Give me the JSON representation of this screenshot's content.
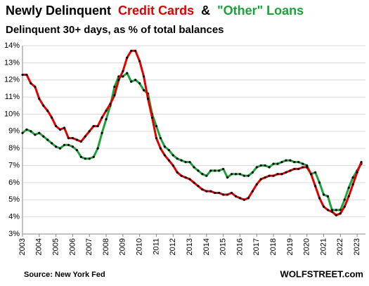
{
  "chart_data": {
    "type": "line",
    "title": "Newly Delinquent",
    "title_conjunction": "&",
    "subtitle": "Delinquent 30+ days, as % of total balances",
    "source": "Source: New York Fed",
    "brand": "WOLFSTREET.com",
    "x": [
      2003,
      2003.25,
      2003.5,
      2003.75,
      2004,
      2004.25,
      2004.5,
      2004.75,
      2005,
      2005.25,
      2005.5,
      2005.75,
      2006,
      2006.25,
      2006.5,
      2006.75,
      2007,
      2007.25,
      2007.5,
      2007.75,
      2008,
      2008.25,
      2008.5,
      2008.75,
      2009,
      2009.25,
      2009.5,
      2009.75,
      2010,
      2010.25,
      2010.5,
      2010.75,
      2011,
      2011.25,
      2011.5,
      2011.75,
      2012,
      2012.25,
      2012.5,
      2012.75,
      2013,
      2013.25,
      2013.5,
      2013.75,
      2014,
      2014.25,
      2014.5,
      2014.75,
      2015,
      2015.25,
      2015.5,
      2015.75,
      2016,
      2016.25,
      2016.5,
      2016.75,
      2017,
      2017.25,
      2017.5,
      2017.75,
      2018,
      2018.25,
      2018.5,
      2018.75,
      2019,
      2019.25,
      2019.5,
      2019.75,
      2020,
      2020.25,
      2020.5,
      2020.75,
      2021,
      2021.25,
      2021.5,
      2021.75,
      2022,
      2022.25,
      2022.5,
      2022.75,
      2023,
      2023.25
    ],
    "series": [
      {
        "name": "Credit Cards",
        "color": "#e00000",
        "values": [
          12.3,
          12.3,
          11.8,
          11.6,
          10.9,
          10.5,
          10.2,
          9.8,
          9.3,
          9.1,
          9.2,
          8.6,
          8.6,
          8.5,
          8.4,
          8.7,
          9.0,
          9.3,
          9.3,
          9.8,
          10.2,
          10.6,
          11.1,
          12.0,
          12.5,
          13.3,
          13.7,
          13.7,
          13.1,
          12.2,
          10.9,
          9.8,
          8.6,
          8.0,
          7.6,
          7.3,
          7.0,
          6.6,
          6.4,
          6.3,
          6.2,
          6.0,
          5.8,
          5.6,
          5.5,
          5.5,
          5.4,
          5.4,
          5.3,
          5.3,
          5.4,
          5.2,
          5.1,
          5.0,
          5.1,
          5.5,
          5.9,
          6.2,
          6.3,
          6.4,
          6.4,
          6.5,
          6.5,
          6.6,
          6.7,
          6.8,
          6.8,
          6.9,
          6.9,
          6.5,
          5.8,
          5.1,
          4.6,
          4.4,
          4.3,
          4.1,
          4.2,
          4.6,
          5.2,
          5.9,
          6.6,
          7.2
        ]
      },
      {
        "name": "\"Other\" Loans",
        "color": "#1aa33a",
        "values": [
          8.9,
          9.1,
          9.0,
          8.8,
          8.9,
          8.7,
          8.5,
          8.3,
          8.1,
          8.0,
          8.2,
          8.2,
          8.1,
          7.9,
          7.5,
          7.4,
          7.4,
          7.5,
          8.0,
          8.9,
          9.7,
          10.5,
          11.6,
          12.2,
          12.2,
          12.4,
          11.9,
          12.0,
          11.8,
          11.4,
          11.2,
          10.0,
          9.3,
          8.6,
          8.1,
          7.9,
          7.6,
          7.4,
          7.3,
          7.2,
          7.2,
          6.9,
          6.7,
          6.5,
          6.4,
          6.7,
          6.7,
          6.7,
          6.8,
          6.3,
          6.5,
          6.5,
          6.5,
          6.4,
          6.4,
          6.6,
          6.9,
          7.0,
          7.0,
          6.9,
          7.1,
          7.1,
          7.2,
          7.3,
          7.3,
          7.2,
          7.2,
          7.1,
          7.0,
          6.5,
          6.6,
          6.0,
          5.3,
          5.2,
          4.4,
          4.4,
          4.4,
          5.0,
          5.7,
          6.3,
          6.7,
          7.1
        ]
      }
    ],
    "xlim": [
      2003,
      2023.5
    ],
    "xticks": [
      2003,
      2004,
      2005,
      2006,
      2007,
      2008,
      2009,
      2010,
      2011,
      2012,
      2013,
      2014,
      2015,
      2016,
      2017,
      2018,
      2019,
      2020,
      2021,
      2022,
      2023
    ],
    "ylim": [
      3,
      14
    ],
    "yticks": [
      {
        "value": 3,
        "label": "3%"
      },
      {
        "value": 4,
        "label": "4%"
      },
      {
        "value": 5,
        "label": "5%"
      },
      {
        "value": 6,
        "label": "6%"
      },
      {
        "value": 7,
        "label": "7%"
      },
      {
        "value": 8,
        "label": "8%"
      },
      {
        "value": 9,
        "label": "9%"
      },
      {
        "value": 10,
        "label": "10%"
      },
      {
        "value": 11,
        "label": "11%"
      },
      {
        "value": 12,
        "label": "12%"
      },
      {
        "value": 13,
        "label": "13%"
      },
      {
        "value": 14,
        "label": "14%"
      }
    ],
    "grid": true,
    "marker_color": "#000000"
  }
}
